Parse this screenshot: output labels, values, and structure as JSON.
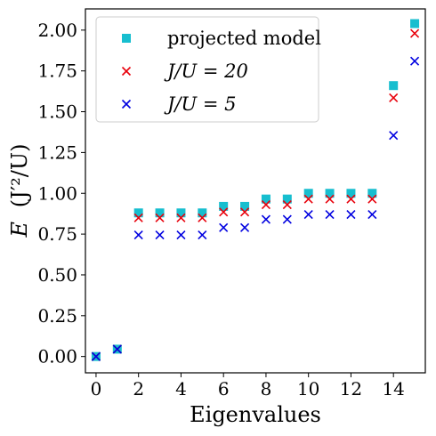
{
  "chart_data": {
    "type": "scatter",
    "xlabel": "Eigenvalues",
    "ylabel_main": "E",
    "ylabel_unit": "(J′²/U)",
    "xlim": [
      -0.5,
      15.5
    ],
    "ylim": [
      -0.1,
      2.13
    ],
    "xticks": [
      0,
      2,
      4,
      6,
      8,
      10,
      12,
      14
    ],
    "xtick_labels": [
      "0",
      "2",
      "4",
      "6",
      "8",
      "10",
      "12",
      "14"
    ],
    "yticks": [
      0.0,
      0.25,
      0.5,
      0.75,
      1.0,
      1.25,
      1.5,
      1.75,
      2.0
    ],
    "ytick_labels": [
      "0.00",
      "0.25",
      "0.50",
      "0.75",
      "1.00",
      "1.25",
      "1.50",
      "1.75",
      "2.00"
    ],
    "grid": false,
    "legend_position": "top-left",
    "x": [
      0,
      1,
      2,
      3,
      4,
      5,
      6,
      7,
      8,
      9,
      10,
      11,
      12,
      13,
      14,
      15
    ],
    "series": [
      {
        "name": "projected model",
        "marker": "square",
        "color": "#17becf",
        "values": [
          0.0,
          0.045,
          0.88,
          0.88,
          0.88,
          0.88,
          0.92,
          0.92,
          0.965,
          0.965,
          1.0,
          1.0,
          1.0,
          1.0,
          1.66,
          2.04
        ]
      },
      {
        "name": "J/U = 20",
        "marker": "x",
        "color": "#e8000b",
        "values": [
          0.0,
          0.045,
          0.85,
          0.85,
          0.85,
          0.85,
          0.885,
          0.885,
          0.93,
          0.93,
          0.965,
          0.965,
          0.965,
          0.965,
          1.585,
          1.98
        ]
      },
      {
        "name": "J/U = 5",
        "marker": "x",
        "color": "#0000e0",
        "values": [
          0.0,
          0.045,
          0.745,
          0.745,
          0.745,
          0.745,
          0.79,
          0.79,
          0.84,
          0.84,
          0.87,
          0.87,
          0.87,
          0.87,
          1.355,
          1.81
        ]
      }
    ]
  }
}
